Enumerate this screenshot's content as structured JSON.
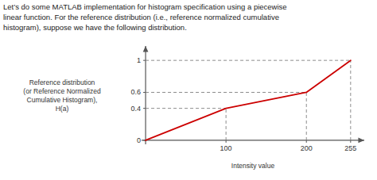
{
  "chart_data": {
    "type": "line",
    "title": "Let’s do some MATLAB implementation for histogram specification using a piecewise\nlinear function. For the reference distribution (i.e., reference normalized cumulative\nhistogram), suppose we have the following distribution.",
    "x_label": "Intensity value",
    "y_label": "Reference distribution\n(or Reference Normalized\nCumulative Histogram),\nH(a)",
    "x": [
      0,
      100,
      200,
      255
    ],
    "values": [
      0,
      0.4,
      0.6,
      1.0
    ],
    "color": "#CC0000",
    "xlim": [
      -5,
      272
    ],
    "ylim": [
      -0.05,
      1.18
    ],
    "xticks": [
      100,
      200,
      255
    ],
    "yticks": [
      0,
      0.4,
      0.6,
      1
    ],
    "grid": false
  }
}
